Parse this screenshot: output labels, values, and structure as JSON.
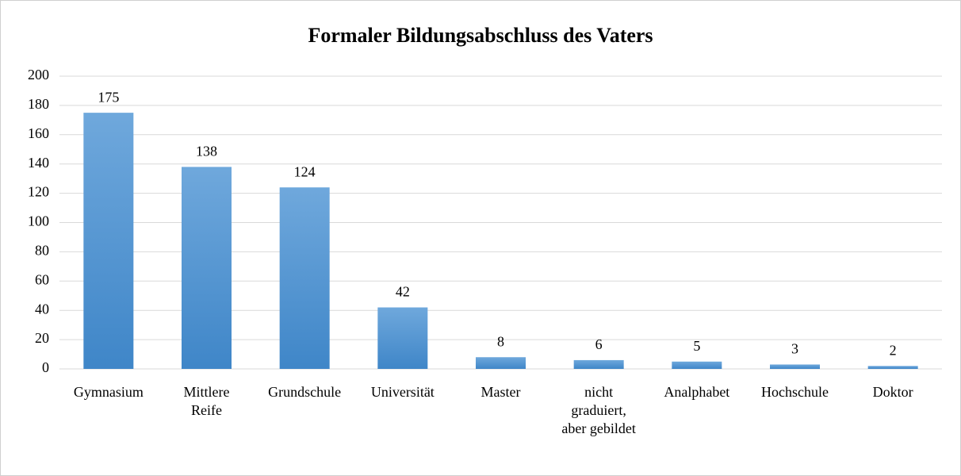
{
  "chart_data": {
    "type": "bar",
    "title": "Formaler Bildungsabschluss des Vaters",
    "categories": [
      "Gymnasium",
      "Mittlere Reife",
      "Grundschule",
      "Universität",
      "Master",
      "nicht graduiert, aber gebildet",
      "Analphabet",
      "Hochschule",
      "Doktor"
    ],
    "values": [
      175,
      138,
      124,
      42,
      8,
      6,
      5,
      3,
      2
    ],
    "color": "#5b9bd5",
    "ylim": [
      0,
      200
    ],
    "yticks": [
      0,
      20,
      40,
      60,
      80,
      100,
      120,
      140,
      160,
      180,
      200
    ],
    "grid": true
  }
}
